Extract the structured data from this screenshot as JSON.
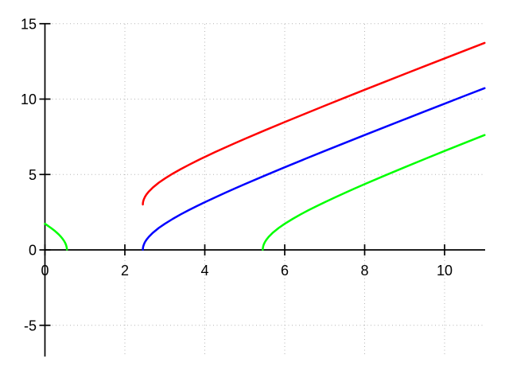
{
  "chart_data": {
    "type": "line",
    "title": "",
    "xlabel": "",
    "ylabel": "",
    "xlim": [
      0,
      11.03
    ],
    "ylim": [
      -7.07,
      15
    ],
    "xticks": {
      "values": [
        0,
        2,
        4,
        6,
        8,
        10
      ],
      "labels": [
        "0",
        "2",
        "4",
        "6",
        "8",
        "10"
      ]
    },
    "yticks": {
      "values": [
        -5,
        0,
        5,
        10,
        15
      ],
      "labels": [
        "-5",
        "0",
        "5",
        "10",
        "15"
      ]
    },
    "grid": {
      "visible": true,
      "style": "dotted",
      "color": "#b4b4b4"
    },
    "legend": {
      "visible": false
    },
    "axes_color": "#000000",
    "background": "#ffffff",
    "series": [
      {
        "name": "red-curve",
        "color": "#ff0000",
        "branches": [
          [
            [
              2.4495,
              3.01
            ],
            [
              2.452,
              3.111
            ],
            [
              2.46,
              3.227
            ],
            [
              2.475,
              3.354
            ],
            [
              2.5,
              3.5
            ],
            [
              2.54,
              3.672
            ],
            [
              2.6,
              3.872
            ],
            [
              2.7,
              4.136
            ],
            [
              2.85,
              4.457
            ],
            [
              3.0,
              4.732
            ],
            [
              3.2,
              5.059
            ],
            [
              3.4,
              5.358
            ],
            [
              3.6,
              5.638
            ],
            [
              3.8,
              5.905
            ],
            [
              4.0,
              6.162
            ],
            [
              4.25,
              6.473
            ],
            [
              4.5,
              6.775
            ],
            [
              4.75,
              7.07
            ],
            [
              5.0,
              7.359
            ],
            [
              5.5,
              7.924
            ],
            [
              6.0,
              8.477
            ],
            [
              6.5,
              9.021
            ],
            [
              7.0,
              9.557
            ],
            [
              7.5,
              10.089
            ],
            [
              8.0,
              10.616
            ],
            [
              8.5,
              11.139
            ],
            [
              9.0,
              11.66
            ],
            [
              9.5,
              12.179
            ],
            [
              10.0,
              12.695
            ],
            [
              10.5,
              13.21
            ],
            [
              11.0,
              13.724
            ]
          ]
        ]
      },
      {
        "name": "green-curve",
        "color": "#00ff00",
        "branches": [
          [
            [
              0,
              1.732
            ],
            [
              0.05,
              1.644
            ],
            [
              0.1,
              1.552
            ],
            [
              0.15,
              1.457
            ],
            [
              0.2,
              1.356
            ],
            [
              0.25,
              1.25
            ],
            [
              0.3,
              1.136
            ],
            [
              0.35,
              1.011
            ],
            [
              0.4,
              0.872
            ],
            [
              0.44,
              0.744
            ],
            [
              0.48,
              0.592
            ],
            [
              0.51,
              0.447
            ],
            [
              0.53,
              0.318
            ],
            [
              0.545,
              0.164
            ],
            [
              0.5505,
              0.02
            ]
          ],
          [
            [
              5.4495,
              0.01
            ],
            [
              5.452,
              0.111
            ],
            [
              5.46,
              0.227
            ],
            [
              5.475,
              0.354
            ],
            [
              5.5,
              0.5
            ],
            [
              5.54,
              0.672
            ],
            [
              5.6,
              0.872
            ],
            [
              5.7,
              1.136
            ],
            [
              5.85,
              1.457
            ],
            [
              6.0,
              1.732
            ],
            [
              6.2,
              2.059
            ],
            [
              6.4,
              2.358
            ],
            [
              6.6,
              2.638
            ],
            [
              6.8,
              2.905
            ],
            [
              7.0,
              3.162
            ],
            [
              7.25,
              3.473
            ],
            [
              7.5,
              3.775
            ],
            [
              7.75,
              4.07
            ],
            [
              8.0,
              4.359
            ],
            [
              8.5,
              4.924
            ],
            [
              9.0,
              5.477
            ],
            [
              9.5,
              6.021
            ],
            [
              10.0,
              6.557
            ],
            [
              10.5,
              7.089
            ],
            [
              11.0,
              7.616
            ]
          ]
        ]
      },
      {
        "name": "blue-curve",
        "color": "#0000ff",
        "branches": [
          [
            [
              2.4495,
              0.01
            ],
            [
              2.452,
              0.111
            ],
            [
              2.46,
              0.227
            ],
            [
              2.475,
              0.354
            ],
            [
              2.5,
              0.5
            ],
            [
              2.54,
              0.672
            ],
            [
              2.6,
              0.872
            ],
            [
              2.7,
              1.136
            ],
            [
              2.85,
              1.457
            ],
            [
              3.0,
              1.732
            ],
            [
              3.2,
              2.059
            ],
            [
              3.4,
              2.358
            ],
            [
              3.6,
              2.638
            ],
            [
              3.8,
              2.905
            ],
            [
              4.0,
              3.162
            ],
            [
              4.25,
              3.473
            ],
            [
              4.5,
              3.775
            ],
            [
              4.75,
              4.07
            ],
            [
              5.0,
              4.359
            ],
            [
              5.5,
              4.924
            ],
            [
              6.0,
              5.477
            ],
            [
              6.5,
              6.021
            ],
            [
              7.0,
              6.557
            ],
            [
              7.5,
              7.089
            ],
            [
              8.0,
              7.616
            ],
            [
              8.5,
              8.139
            ],
            [
              9.0,
              8.66
            ],
            [
              9.5,
              9.179
            ],
            [
              10.0,
              9.695
            ],
            [
              10.5,
              10.21
            ],
            [
              11.0,
              10.724
            ]
          ]
        ]
      }
    ]
  }
}
